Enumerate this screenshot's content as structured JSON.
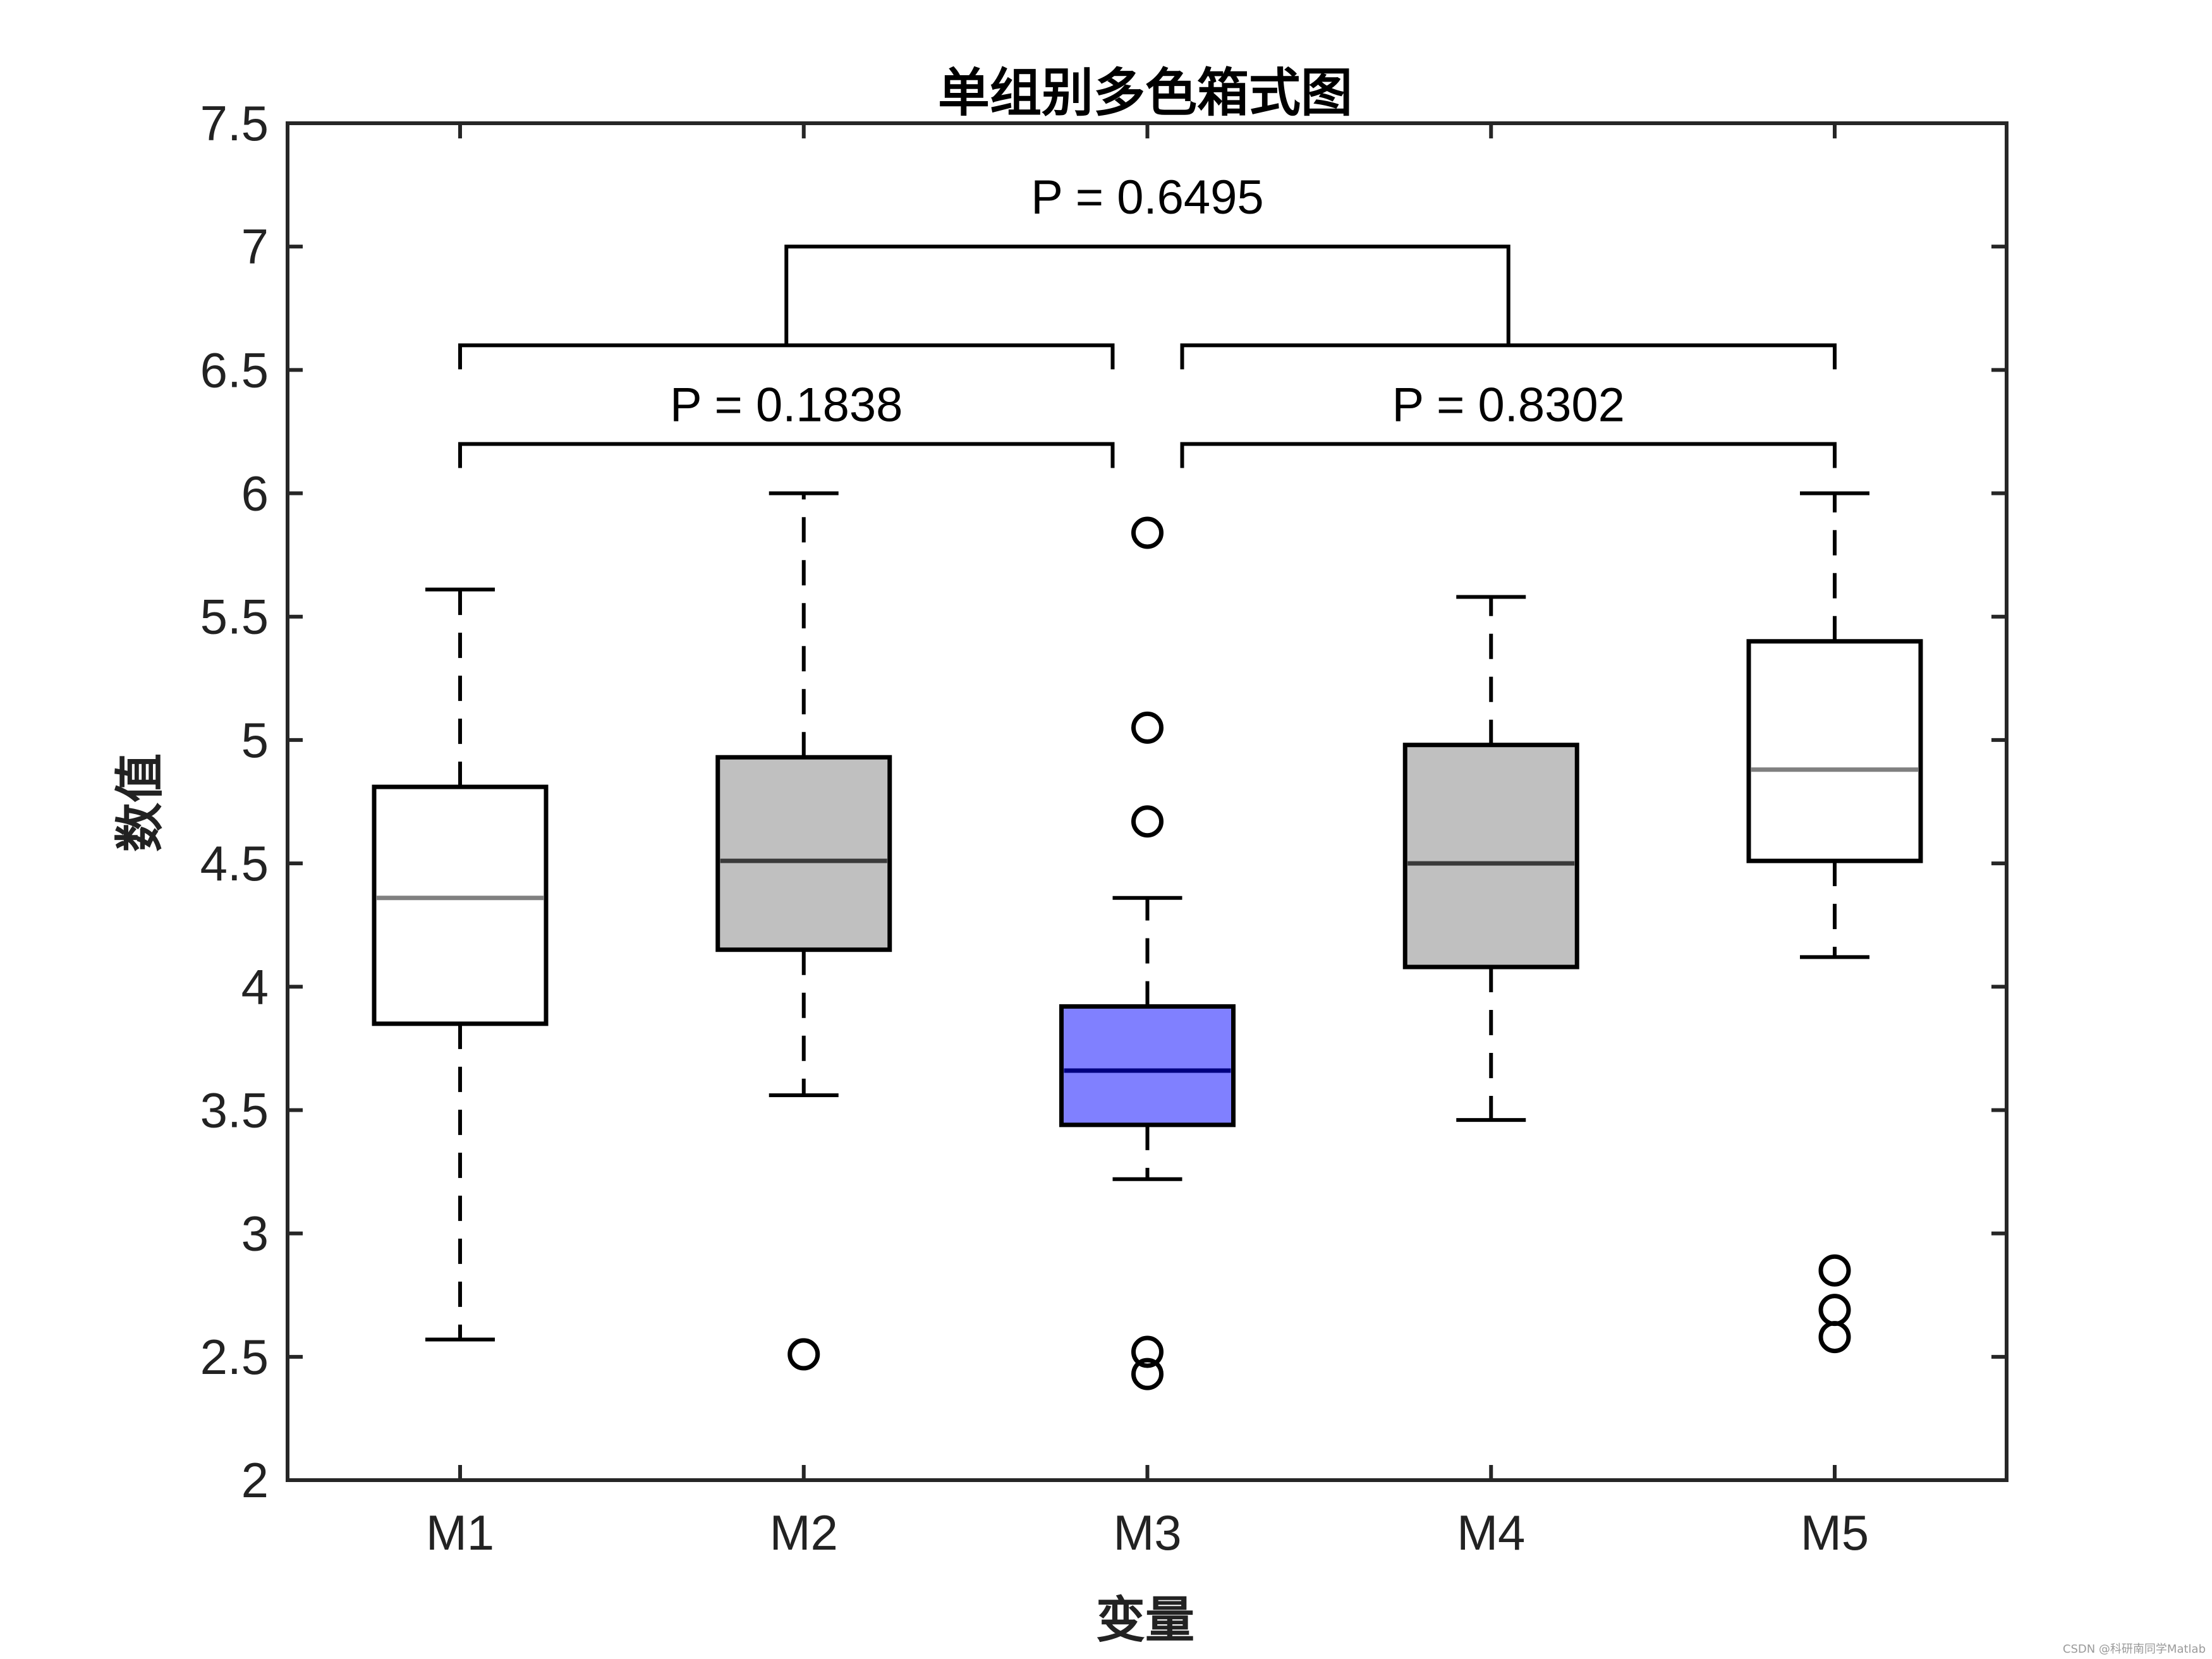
{
  "chart_data": {
    "type": "box",
    "title": "单组别多色箱式图",
    "xlabel": "变量",
    "ylabel": "数值",
    "ylim": [
      2,
      7.5
    ],
    "yticks": [
      "2",
      "2.5",
      "3",
      "3.5",
      "4",
      "4.5",
      "5",
      "5.5",
      "6",
      "6.5",
      "7",
      "7.5"
    ],
    "categories": [
      "M1",
      "M2",
      "M3",
      "M4",
      "M5"
    ],
    "boxes": [
      {
        "name": "M1",
        "whisker_low": 2.57,
        "q1": 3.85,
        "median": 4.36,
        "q3": 4.81,
        "whisker_high": 5.61,
        "outliers": [],
        "fill": "#ffffff",
        "median_color": "#808080"
      },
      {
        "name": "M2",
        "whisker_low": 3.56,
        "q1": 4.15,
        "median": 4.51,
        "q3": 4.93,
        "whisker_high": 6.0,
        "outliers": [
          2.51
        ],
        "fill": "#c0c0c0",
        "median_color": "#3a3a3a"
      },
      {
        "name": "M3",
        "whisker_low": 3.22,
        "q1": 3.44,
        "median": 3.66,
        "q3": 3.92,
        "whisker_high": 4.36,
        "outliers": [
          5.84,
          5.05,
          4.67,
          2.52,
          2.43
        ],
        "fill": "#8080ff",
        "median_color": "#000080"
      },
      {
        "name": "M4",
        "whisker_low": 3.46,
        "q1": 4.08,
        "median": 4.5,
        "q3": 4.98,
        "whisker_high": 5.58,
        "outliers": [],
        "fill": "#c0c0c0",
        "median_color": "#3a3a3a"
      },
      {
        "name": "M5",
        "whisker_low": 4.12,
        "q1": 4.51,
        "median": 4.88,
        "q3": 5.4,
        "whisker_high": 6.0,
        "outliers": [
          2.85,
          2.69,
          2.58
        ],
        "fill": "#ffffff",
        "median_color": "#808080"
      }
    ],
    "annotations": [
      {
        "label": "P = 0.1838",
        "groups": [
          "M1",
          "M2",
          "M3"
        ]
      },
      {
        "label": "P = 0.8302",
        "groups": [
          "M3",
          "M4",
          "M5"
        ]
      },
      {
        "label": "P = 0.6495",
        "groups": [
          "M1-M3",
          "M3-M5"
        ]
      }
    ],
    "grid": false,
    "legend": "none"
  },
  "watermark": "CSDN @科研南同学Matlab"
}
